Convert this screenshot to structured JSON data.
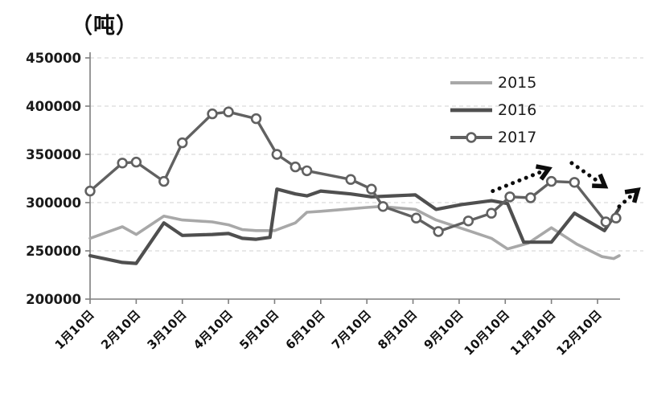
{
  "chart_data": {
    "type": "line",
    "title": "（吨）",
    "y_axis": {
      "min": 200000,
      "max": 450000,
      "step": 50000,
      "tick_labels": [
        "200000",
        "250000",
        "300000",
        "350000",
        "400000",
        "450000"
      ]
    },
    "x_axis": {
      "tick_labels": [
        "1月10日",
        "2月10日",
        "3月10日",
        "4月10日",
        "5月10日",
        "6月10日",
        "7月10日",
        "8月10日",
        "9月10日",
        "10月10日",
        "11月10日",
        "12月10日"
      ]
    },
    "grid": "dashed-horizontal",
    "legend_position": "upper-right-inside",
    "legend": [
      "2015",
      "2016",
      "2017"
    ],
    "colors": {
      "series_2015": "#a8a8a8",
      "series_2016": "#4f4f4f",
      "series_2017": "#616161",
      "marker_fill": "#ffffff",
      "annotation_arrows": "#0d0d0d",
      "gridline": "#d9d9d9",
      "axis": "#7f7f7f"
    },
    "series": [
      {
        "name": "2015",
        "color": "#a8a8a8",
        "marker": false,
        "width": 3.6,
        "points": [
          [
            1.0,
            263000
          ],
          [
            1.7,
            275000
          ],
          [
            2.0,
            267000
          ],
          [
            2.6,
            286000
          ],
          [
            3.0,
            282000
          ],
          [
            3.65,
            280000
          ],
          [
            4.0,
            277000
          ],
          [
            4.3,
            272000
          ],
          [
            4.6,
            271000
          ],
          [
            5.0,
            271000
          ],
          [
            5.45,
            279000
          ],
          [
            5.7,
            290000
          ],
          [
            6.0,
            291000
          ],
          [
            6.5,
            293000
          ],
          [
            7.0,
            295000
          ],
          [
            7.3,
            296000
          ],
          [
            8.05,
            293000
          ],
          [
            8.5,
            282000
          ],
          [
            9.2,
            271000
          ],
          [
            9.7,
            263000
          ],
          [
            10.05,
            252000
          ],
          [
            10.5,
            258000
          ],
          [
            11.0,
            274000
          ],
          [
            11.55,
            257000
          ],
          [
            12.1,
            244000
          ],
          [
            12.35,
            242000
          ],
          [
            12.47,
            245000
          ]
        ]
      },
      {
        "name": "2016",
        "color": "#4f4f4f",
        "marker": false,
        "width": 4.2,
        "points": [
          [
            1.0,
            245000
          ],
          [
            1.7,
            238000
          ],
          [
            2.0,
            237000
          ],
          [
            2.6,
            279000
          ],
          [
            3.0,
            266000
          ],
          [
            3.65,
            267000
          ],
          [
            4.0,
            268000
          ],
          [
            4.3,
            263000
          ],
          [
            4.6,
            262000
          ],
          [
            4.9,
            264000
          ],
          [
            5.05,
            314000
          ],
          [
            5.45,
            309000
          ],
          [
            5.7,
            307000
          ],
          [
            6.0,
            312000
          ],
          [
            6.65,
            309000
          ],
          [
            7.1,
            306000
          ],
          [
            7.55,
            307000
          ],
          [
            8.05,
            308000
          ],
          [
            8.5,
            293000
          ],
          [
            9.05,
            298000
          ],
          [
            9.7,
            302000
          ],
          [
            10.05,
            299000
          ],
          [
            10.4,
            259000
          ],
          [
            11.0,
            259000
          ],
          [
            11.5,
            289000
          ],
          [
            12.15,
            271000
          ],
          [
            12.47,
            294000
          ]
        ]
      },
      {
        "name": "2017",
        "color": "#616161",
        "marker": true,
        "width": 3.4,
        "points": [
          [
            1.0,
            312000
          ],
          [
            1.7,
            341000
          ],
          [
            2.0,
            342000
          ],
          [
            2.6,
            322000
          ],
          [
            3.0,
            362000
          ],
          [
            3.65,
            392000
          ],
          [
            4.0,
            394000
          ],
          [
            4.6,
            387000
          ],
          [
            5.05,
            350000
          ],
          [
            5.45,
            337000
          ],
          [
            5.7,
            333000
          ],
          [
            6.65,
            324000
          ],
          [
            7.1,
            314000
          ],
          [
            7.35,
            296000
          ],
          [
            8.07,
            284000
          ],
          [
            8.55,
            270000
          ],
          [
            9.2,
            281000
          ],
          [
            9.7,
            289000
          ],
          [
            10.1,
            306000
          ],
          [
            10.55,
            305000
          ],
          [
            11.0,
            322000
          ],
          [
            11.5,
            321000
          ],
          [
            12.18,
            280000
          ],
          [
            12.4,
            284000
          ]
        ]
      }
    ],
    "annotations": {
      "arrows": [
        {
          "name": "trend-arrow-up-october",
          "style": "dotted",
          "from": [
            9.73,
            312000
          ],
          "to": [
            10.94,
            335000
          ]
        },
        {
          "name": "trend-arrow-down-december",
          "style": "dotted",
          "from": [
            11.44,
            341000
          ],
          "to": [
            12.16,
            317000
          ]
        },
        {
          "name": "trend-arrow-up-year-end",
          "style": "dotted",
          "from": [
            12.47,
            296000
          ],
          "to": [
            12.87,
            313000
          ]
        }
      ]
    }
  }
}
